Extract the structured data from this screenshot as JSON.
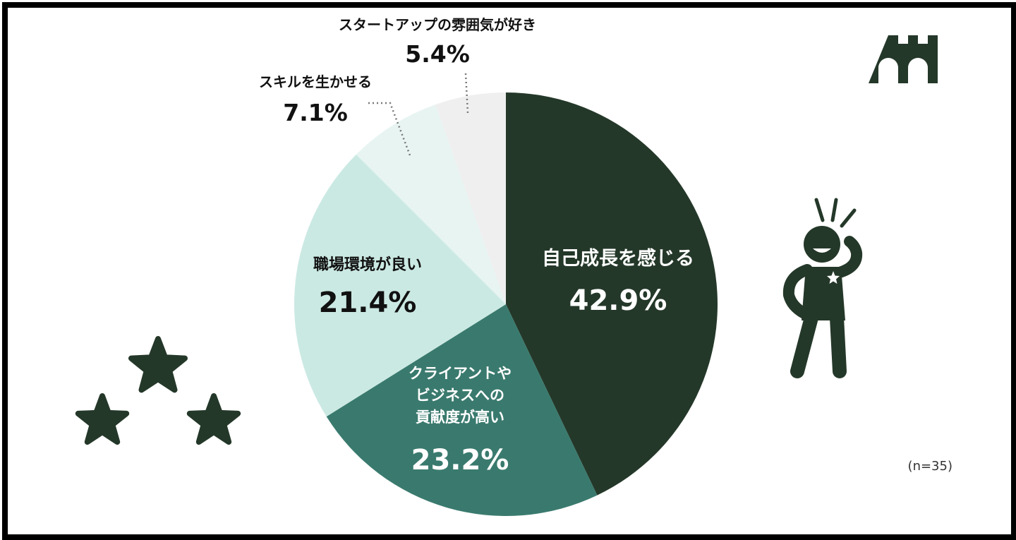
{
  "chart_data": {
    "type": "pie",
    "start": "top, clockwise",
    "slices": [
      {
        "label": "自己成長を感じる",
        "value": 42.9,
        "value_text": "42.9%",
        "color": "#243829",
        "text_color": "#ffffff"
      },
      {
        "label": "クライアントやビジネスへの貢献度が高い",
        "label_lines": [
          "クライアントや",
          "ビジネスへの",
          "貢献度が高い"
        ],
        "value": 23.2,
        "value_text": "23.2%",
        "color": "#3a7a6e",
        "text_color": "#ffffff"
      },
      {
        "label": "職場環境が良い",
        "value": 21.4,
        "value_text": "21.4%",
        "color": "#cbe9e3",
        "text_color": "#111111"
      },
      {
        "label": "スキルを生かせる",
        "value": 7.1,
        "value_text": "7.1%",
        "color": "#e7f4f2",
        "text_color": "#111111"
      },
      {
        "label": "スタートアップの雰囲気が好き",
        "value": 5.4,
        "value_text": "5.4%",
        "color": "#efefef",
        "text_color": "#111111"
      }
    ],
    "note": "(n=35)"
  },
  "icons": {
    "top_right": "castle-icon",
    "right": "thumbs-up-person-icon",
    "bottom_left": "three-stars-icon",
    "accent": "#243829"
  }
}
